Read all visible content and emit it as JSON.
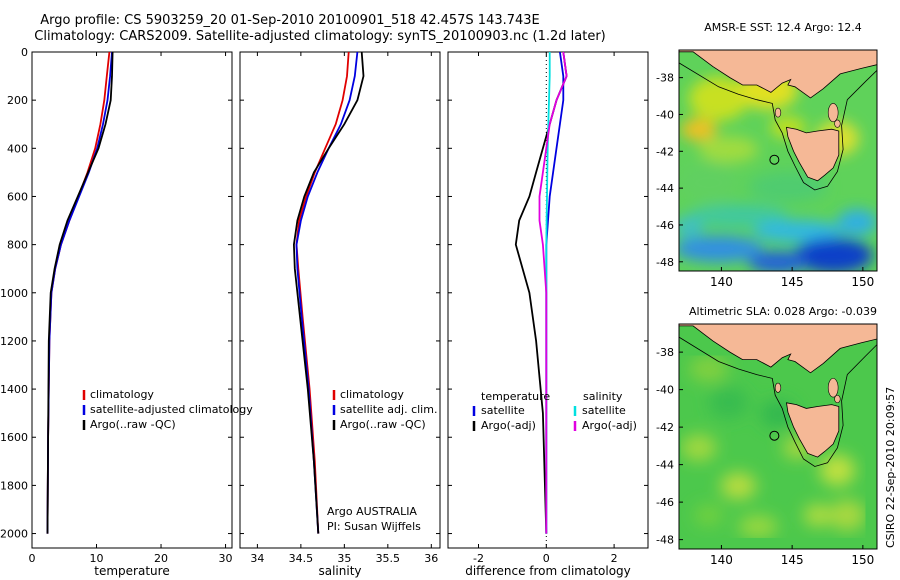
{
  "header": {
    "line1": "Argo profile: CS 5903259_20 01-Sep-2010 20100901_518 42.457S 143.743E",
    "line2": "Climatology: CARS2009. Satellite-adjusted climatology: synTS_20100903.nc (1.2d later)"
  },
  "stamp": "CSIRO 22-Sep-2010 20:09:57",
  "colors": {
    "climatology": "#e00000",
    "satellite": "#0000e0",
    "argo": "#000000",
    "sat_sal": "#00e0e0",
    "argo_sal": "#e000e0",
    "land": "#f5b896"
  },
  "chart_data": [
    {
      "type": "line",
      "xlabel": "temperature",
      "xlim": [
        0,
        31
      ],
      "ylim": [
        2060,
        0
      ],
      "xticks": [
        "0",
        "10",
        "20",
        "30"
      ],
      "yticks": [
        "0",
        "200",
        "400",
        "600",
        "800",
        "1000",
        "1200",
        "1400",
        "1600",
        "1800",
        "2000"
      ],
      "series": [
        {
          "name": "climatology",
          "color": "#e00000",
          "x": [
            12.0,
            11.6,
            11.2,
            10.6,
            9.8,
            8.6,
            7.2,
            5.8,
            4.5,
            3.6,
            3.0,
            2.7,
            2.5,
            2.4
          ],
          "y": [
            0,
            100,
            200,
            300,
            400,
            500,
            600,
            700,
            800,
            900,
            1000,
            1200,
            1600,
            2000
          ]
        },
        {
          "name": "satellite-adjusted climatology",
          "color": "#0000e0",
          "x": [
            12.4,
            12.1,
            11.7,
            11.0,
            10.1,
            8.8,
            7.3,
            5.8,
            4.5,
            3.6,
            3.0,
            2.7,
            2.5,
            2.4
          ],
          "y": [
            0,
            100,
            200,
            300,
            400,
            500,
            600,
            700,
            800,
            900,
            1000,
            1200,
            1600,
            2000
          ]
        },
        {
          "name": "Argo(..raw -QC)",
          "color": "#000000",
          "x": [
            12.5,
            12.4,
            12.2,
            11.4,
            10.3,
            8.7,
            7.1,
            5.5,
            4.3,
            3.5,
            2.9,
            2.6,
            2.5,
            2.4
          ],
          "y": [
            0,
            100,
            200,
            300,
            400,
            500,
            600,
            700,
            800,
            900,
            1000,
            1200,
            1600,
            2000
          ]
        }
      ],
      "legend": [
        "climatology",
        "satellite-adjusted climatology",
        "Argo(..raw -QC)"
      ]
    },
    {
      "type": "line",
      "xlabel": "salinity",
      "xlim": [
        33.8,
        36.1
      ],
      "ylim": [
        2060,
        0
      ],
      "xticks": [
        "34",
        "34.5",
        "35",
        "35.5",
        "36"
      ],
      "series": [
        {
          "name": "climatology",
          "color": "#e00000",
          "x": [
            35.05,
            35.03,
            34.98,
            34.9,
            34.78,
            34.66,
            34.56,
            34.48,
            34.45,
            34.47,
            34.52,
            34.6,
            34.66,
            34.7
          ],
          "y": [
            0,
            100,
            200,
            300,
            400,
            500,
            600,
            700,
            800,
            900,
            1100,
            1400,
            1700,
            2000
          ]
        },
        {
          "name": "satellite adj. clim.",
          "color": "#0000e0",
          "x": [
            35.15,
            35.12,
            35.06,
            34.96,
            34.82,
            34.69,
            34.58,
            34.5,
            34.45,
            34.46,
            34.51,
            34.59,
            34.65,
            34.7
          ],
          "y": [
            0,
            100,
            200,
            300,
            400,
            500,
            600,
            700,
            800,
            900,
            1100,
            1400,
            1700,
            2000
          ]
        },
        {
          "name": "Argo(..raw -QC)",
          "color": "#000000",
          "x": [
            35.2,
            35.22,
            35.15,
            35.0,
            34.82,
            34.65,
            34.54,
            34.46,
            34.42,
            34.43,
            34.49,
            34.58,
            34.65,
            34.7
          ],
          "y": [
            0,
            100,
            200,
            300,
            400,
            500,
            600,
            700,
            800,
            900,
            1100,
            1400,
            1700,
            2000
          ]
        }
      ],
      "legend": [
        "climatology",
        "satellite adj. clim.",
        "Argo(..raw -QC)"
      ],
      "annotation": [
        "Argo AUSTRALIA",
        "PI: Susan Wijffels"
      ]
    },
    {
      "type": "line",
      "xlabel": "difference from climatology",
      "xlim": [
        -2.9,
        3.0
      ],
      "ylim": [
        2060,
        0
      ],
      "xticks": [
        "-2",
        "0",
        "2"
      ],
      "series": [
        {
          "name": "temperature satellite",
          "color": "#0000e0",
          "x": [
            0.4,
            0.5,
            0.5,
            0.4,
            0.3,
            0.2,
            0.1,
            0.05,
            0.0,
            0.0,
            0.0,
            0.0,
            0.0
          ],
          "y": [
            0,
            100,
            200,
            300,
            400,
            500,
            600,
            700,
            800,
            900,
            1200,
            1600,
            2000
          ]
        },
        {
          "name": "temperature Argo(-adj)",
          "color": "#000000",
          "x": [
            0.5,
            0.6,
            0.3,
            0.1,
            -0.1,
            -0.3,
            -0.5,
            -0.8,
            -0.9,
            -0.5,
            -0.3,
            -0.1,
            0.0
          ],
          "y": [
            0,
            100,
            200,
            300,
            400,
            500,
            600,
            700,
            800,
            1000,
            1200,
            1500,
            2000
          ]
        },
        {
          "name": "salinity satellite",
          "color": "#00e0e0",
          "x": [
            0.1,
            0.1,
            0.08,
            0.06,
            0.04,
            0.03,
            0.02,
            0.01,
            0.0,
            0.0,
            0.0,
            0.0
          ],
          "y": [
            0,
            100,
            200,
            300,
            400,
            500,
            600,
            700,
            800,
            1000,
            1500,
            2000
          ]
        },
        {
          "name": "salinity Argo(-adj)",
          "color": "#e000e0",
          "x": [
            0.5,
            0.6,
            0.3,
            0.1,
            0.0,
            -0.1,
            -0.2,
            -0.2,
            -0.1,
            0.0,
            0.0,
            0.0
          ],
          "y": [
            0,
            100,
            200,
            300,
            400,
            500,
            600,
            700,
            800,
            1000,
            1500,
            2000
          ]
        }
      ],
      "legend_left_title": "temperature",
      "legend_right_title": "salinity",
      "legend_left": [
        "satellite",
        "Argo(-adj)"
      ],
      "legend_right": [
        "satellite",
        "Argo(-adj)"
      ]
    },
    {
      "type": "heatmap",
      "title": "AMSR-E SST: 12.4 Argo: 12.4",
      "xlim": [
        137,
        151
      ],
      "ylim": [
        -48.5,
        -36.5
      ],
      "xticks": [
        "140",
        "145",
        "150"
      ],
      "yticks": [
        "-38",
        "-40",
        "-42",
        "-44",
        "-46",
        "-48"
      ],
      "argo_position": [
        143.743,
        -42.457
      ]
    },
    {
      "type": "heatmap",
      "title": "Altimetric SLA: 0.028 Argo: -0.039",
      "xlim": [
        137,
        151
      ],
      "ylim": [
        -48.5,
        -36.5
      ],
      "xticks": [
        "140",
        "145",
        "150"
      ],
      "yticks": [
        "-38",
        "-40",
        "-42",
        "-44",
        "-46",
        "-48"
      ],
      "argo_position": [
        143.743,
        -42.457
      ]
    }
  ]
}
